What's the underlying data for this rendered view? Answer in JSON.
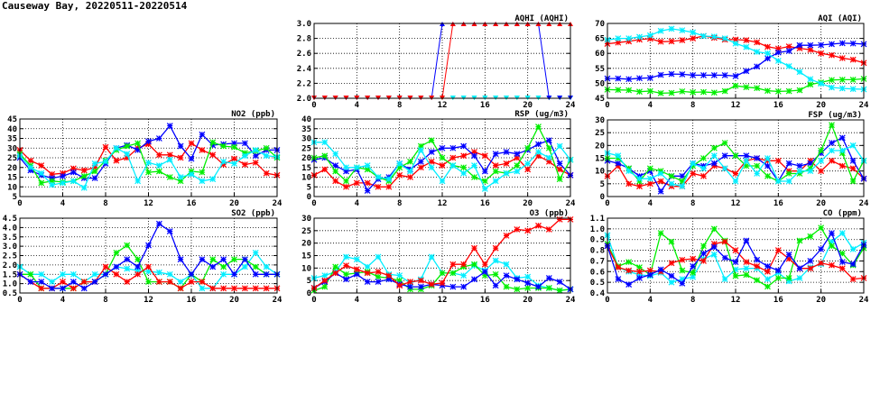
{
  "title": "Causeway Bay, 20220511-20220514",
  "colors": {
    "red": "#ff0000",
    "blue": "#0000ff",
    "green": "#00ee00",
    "cyan": "#00eeff"
  },
  "chart_data": [
    {
      "id": "aqhi",
      "type": "line",
      "title": "AQHI (AQHI)",
      "marker": "triangle",
      "ylim": [
        2.0,
        3.0
      ],
      "yticks": [
        "2.0",
        "2.2",
        "2.4",
        "2.6",
        "2.8",
        "3.0"
      ],
      "xticks": [
        "0",
        "4",
        "8",
        "12",
        "16",
        "20",
        "24"
      ],
      "xlim": [
        0,
        24
      ],
      "series": [
        {
          "color": "green",
          "values": [
            2,
            2,
            2,
            2,
            2,
            2,
            2,
            2,
            2,
            2,
            2,
            2,
            2,
            2,
            2,
            2,
            2,
            2,
            2,
            2,
            2,
            2,
            2,
            2,
            2
          ]
        },
        {
          "color": "cyan",
          "values": [
            2,
            2,
            2,
            2,
            2,
            2,
            2,
            2,
            2,
            2,
            2,
            2,
            2,
            2,
            2,
            2,
            2,
            2,
            2,
            2,
            2,
            2,
            2,
            2,
            2
          ]
        },
        {
          "color": "blue",
          "values": [
            2,
            2,
            2,
            2,
            2,
            2,
            2,
            2,
            2,
            2,
            2,
            2,
            3,
            3,
            3,
            3,
            3,
            3,
            3,
            3,
            3,
            3,
            2,
            2,
            2
          ]
        },
        {
          "color": "red",
          "values": [
            2,
            2,
            2,
            2,
            2,
            2,
            2,
            2,
            2,
            2,
            2,
            2,
            2,
            3,
            3,
            3,
            3,
            3,
            3,
            3,
            3,
            3,
            3,
            3,
            3
          ]
        }
      ]
    },
    {
      "id": "aqi",
      "type": "line",
      "title": "AQI (AQI)",
      "marker": "star",
      "ylim": [
        45,
        70
      ],
      "yticks": [
        "45",
        "50",
        "55",
        "60",
        "65",
        "70"
      ],
      "xticks": [
        "0",
        "4",
        "8",
        "12",
        "16",
        "20",
        "24"
      ],
      "xlim": [
        0,
        24
      ],
      "series": [
        {
          "color": "red",
          "values": [
            63.2,
            63.6,
            64,
            64.6,
            64.9,
            63.9,
            64,
            64.4,
            65,
            65.8,
            65.2,
            64.6,
            64.6,
            64.4,
            63.7,
            62.2,
            61.6,
            62.3,
            61.7,
            61.2,
            60,
            59.4,
            58.4,
            57.9,
            56.8
          ]
        },
        {
          "color": "blue",
          "values": [
            51.6,
            51.6,
            51.4,
            51.7,
            51.8,
            52.8,
            53.1,
            53,
            52.7,
            52.7,
            52.7,
            52.7,
            52.4,
            54.1,
            55.6,
            58.3,
            60.3,
            60.8,
            62.7,
            62.7,
            62.8,
            63.1,
            63.4,
            63.3,
            63.1
          ]
        },
        {
          "color": "green",
          "values": [
            47.9,
            47.8,
            47.7,
            47.2,
            47.4,
            46.7,
            46.8,
            47.3,
            47,
            47.1,
            46.9,
            47.4,
            49.2,
            48.7,
            48.4,
            47.5,
            47.3,
            47.4,
            47.7,
            49.6,
            50.3,
            51.1,
            51.2,
            51.2,
            51.5
          ]
        },
        {
          "color": "cyan",
          "values": [
            64.5,
            65,
            65,
            65.5,
            66,
            67.5,
            68.2,
            67.7,
            67,
            65.8,
            65.6,
            65,
            63.3,
            62.1,
            60.5,
            60,
            57.5,
            55.7,
            53.8,
            51.4,
            49.9,
            48.6,
            48.3,
            48.1,
            48
          ]
        }
      ]
    },
    {
      "id": "no2",
      "type": "line",
      "title": "NO2 (ppb)",
      "marker": "star",
      "ylim": [
        5,
        45
      ],
      "yticks": [
        "5",
        "10",
        "15",
        "20",
        "25",
        "30",
        "35",
        "40",
        "45"
      ],
      "xticks": [
        "0",
        "4",
        "8",
        "12",
        "16",
        "20",
        "24"
      ],
      "xlim": [
        0,
        24
      ],
      "series": [
        {
          "color": "red",
          "values": [
            29,
            23.5,
            21,
            16.5,
            17,
            19.5,
            18.5,
            20,
            30.5,
            23.5,
            25,
            30,
            32,
            26.5,
            26.5,
            25,
            32.5,
            29,
            26.5,
            21.5,
            24.5,
            21.5,
            22.5,
            17,
            16
          ]
        },
        {
          "color": "blue",
          "values": [
            25,
            18.5,
            16,
            14.5,
            15.5,
            17.5,
            14.5,
            14.5,
            22,
            30,
            31.5,
            29,
            33.5,
            35,
            41.5,
            31,
            24.5,
            37,
            31.5,
            32,
            32.5,
            32.5,
            26,
            29,
            29
          ]
        },
        {
          "color": "green",
          "values": [
            27,
            21,
            12,
            13,
            12.5,
            13,
            15.5,
            18,
            23.5,
            29,
            31,
            32.5,
            17.5,
            18,
            15,
            13,
            18,
            17.5,
            33,
            31,
            30.5,
            27.5,
            28.5,
            30,
            25
          ]
        },
        {
          "color": "cyan",
          "values": [
            26,
            20,
            17,
            11,
            12,
            13,
            9.5,
            22,
            23,
            30,
            27,
            13,
            22.5,
            21,
            24,
            15,
            16.5,
            13,
            14,
            23,
            22,
            26,
            29,
            26,
            25.5
          ]
        }
      ]
    },
    {
      "id": "rsp",
      "type": "line",
      "title": "RSP (ug/m3)",
      "marker": "star",
      "ylim": [
        0,
        40
      ],
      "yticks": [
        "0",
        "5",
        "10",
        "15",
        "20",
        "25",
        "30",
        "35",
        "40"
      ],
      "xticks": [
        "0",
        "4",
        "8",
        "12",
        "16",
        "20",
        "24"
      ],
      "xlim": [
        0,
        24
      ],
      "series": [
        {
          "color": "red",
          "values": [
            11,
            14,
            8,
            5,
            7,
            7,
            5,
            5,
            11,
            10,
            15,
            18,
            16,
            20,
            21,
            23,
            21,
            16,
            17,
            20,
            14,
            21,
            18,
            14,
            11
          ]
        },
        {
          "color": "blue",
          "values": [
            19,
            20,
            16,
            13,
            14,
            3,
            9,
            10,
            17,
            14,
            18,
            23,
            25,
            25,
            26,
            21,
            13,
            22,
            23,
            22,
            24,
            27,
            29,
            17,
            11
          ]
        },
        {
          "color": "green",
          "values": [
            20,
            21,
            13,
            8,
            15,
            14,
            10,
            8,
            15,
            18,
            26,
            29,
            20,
            16,
            15,
            10,
            8,
            13,
            12,
            16,
            25,
            36,
            25,
            9,
            19
          ]
        },
        {
          "color": "cyan",
          "values": [
            28,
            28,
            22,
            15,
            15,
            16,
            10,
            9,
            17,
            13,
            24,
            15,
            8,
            16,
            12,
            16,
            4,
            8,
            12,
            13,
            17,
            23,
            20,
            26,
            19
          ]
        }
      ]
    },
    {
      "id": "fsp",
      "type": "line",
      "title": "FSP (ug/m3)",
      "marker": "star",
      "ylim": [
        0,
        30
      ],
      "yticks": [
        "0",
        "5",
        "10",
        "15",
        "20",
        "25",
        "30"
      ],
      "xticks": [
        "0",
        "4",
        "8",
        "12",
        "16",
        "20",
        "24"
      ],
      "xlim": [
        0,
        24
      ],
      "series": [
        {
          "color": "red",
          "values": [
            8,
            12,
            5,
            4,
            5,
            6,
            4,
            4,
            9,
            8,
            12,
            11,
            9,
            14,
            15,
            14,
            14,
            10,
            10,
            14,
            10,
            14,
            12,
            11,
            7
          ]
        },
        {
          "color": "blue",
          "values": [
            14,
            13,
            11,
            8,
            10,
            2,
            8,
            8,
            13,
            12,
            13,
            16,
            16,
            16,
            15,
            12,
            6,
            13,
            12,
            13,
            17,
            21,
            23,
            14,
            7
          ]
        },
        {
          "color": "green",
          "values": [
            15,
            15,
            11,
            6,
            11,
            10,
            8,
            6,
            12,
            15,
            19,
            21,
            16,
            12,
            12,
            8,
            6,
            9,
            9,
            11,
            18,
            28,
            17,
            6,
            14
          ]
        },
        {
          "color": "cyan",
          "values": [
            17,
            16,
            10,
            7,
            7,
            9,
            5,
            4,
            13,
            11,
            16,
            11,
            6,
            14,
            9,
            15,
            6,
            6,
            10,
            10,
            14,
            18,
            18,
            20,
            14
          ]
        }
      ]
    },
    {
      "id": "so2",
      "type": "line",
      "title": "SO2 (ppb)",
      "marker": "star",
      "ylim": [
        0.5,
        4.5
      ],
      "yticks": [
        "0.5",
        "1.0",
        "1.5",
        "2.0",
        "2.5",
        "3.0",
        "3.5",
        "4.0",
        "4.5"
      ],
      "xticks": [
        "0",
        "4",
        "8",
        "12",
        "16",
        "20",
        "24"
      ],
      "xlim": [
        0,
        24
      ],
      "series": [
        {
          "color": "cyan",
          "values": [
            1.9,
            1.5,
            1.5,
            1.1,
            1.5,
            1.5,
            1.1,
            1.5,
            1.5,
            1.9,
            1.8,
            1.7,
            1.65,
            1.6,
            1.5,
            1.1,
            1.5,
            0.75,
            0.75,
            1.5,
            1.5,
            1.9,
            2.65,
            1.9,
            1.5
          ]
        },
        {
          "color": "green",
          "values": [
            1.5,
            1.5,
            0.75,
            0.75,
            0.75,
            0.75,
            1.1,
            1.1,
            1.5,
            2.65,
            3.05,
            2.3,
            1.1,
            1.1,
            1.1,
            0.75,
            1.5,
            1.1,
            2.3,
            1.9,
            2.3,
            2.3,
            1.9,
            1.5,
            1.5
          ]
        },
        {
          "color": "red",
          "values": [
            1.5,
            1.1,
            0.75,
            0.75,
            1.1,
            0.75,
            1.1,
            1.1,
            1.9,
            1.5,
            1.1,
            1.5,
            1.9,
            1.1,
            1.1,
            0.75,
            1.1,
            1.1,
            0.75,
            0.75,
            0.75,
            0.75,
            0.75,
            0.75,
            0.75
          ]
        },
        {
          "color": "blue",
          "values": [
            1.5,
            1.1,
            1.1,
            0.75,
            0.75,
            1.1,
            0.75,
            1.1,
            1.5,
            1.9,
            2.3,
            1.9,
            3.05,
            4.2,
            3.8,
            2.3,
            1.5,
            2.3,
            1.9,
            2.3,
            1.5,
            2.3,
            1.5,
            1.5,
            1.5
          ]
        }
      ]
    },
    {
      "id": "o3",
      "type": "line",
      "title": "O3 (ppb)",
      "marker": "star",
      "ylim": [
        0,
        30
      ],
      "yticks": [
        "0",
        "5",
        "10",
        "15",
        "20",
        "25",
        "30"
      ],
      "xticks": [
        "0",
        "4",
        "8",
        "12",
        "16",
        "20",
        "24"
      ],
      "xlim": [
        0,
        24
      ],
      "series": [
        {
          "color": "cyan",
          "values": [
            6,
            7,
            8.5,
            14.5,
            13.5,
            10.5,
            14.5,
            7.5,
            7,
            4,
            5.5,
            14.5,
            8,
            8,
            7,
            11,
            9,
            13,
            11.5,
            6,
            6.5,
            3,
            2,
            1,
            1.5
          ]
        },
        {
          "color": "green",
          "values": [
            1,
            2.5,
            10.5,
            7.5,
            8,
            8.5,
            6.5,
            6,
            5,
            1.5,
            1.5,
            3,
            8,
            8,
            10.5,
            11.5,
            7,
            7.5,
            2.5,
            1.5,
            2,
            2,
            2,
            1,
            1.5
          ]
        },
        {
          "color": "blue",
          "values": [
            2,
            4.5,
            8,
            5.5,
            7.5,
            4.5,
            4.5,
            5.5,
            3.5,
            2.5,
            2.5,
            3.5,
            3,
            2.5,
            2.5,
            5.5,
            8.5,
            3,
            7,
            5.5,
            4,
            2.5,
            6,
            4.5,
            1.5
          ]
        },
        {
          "color": "red",
          "values": [
            2,
            5,
            8,
            11,
            9.5,
            8,
            8.5,
            7,
            3,
            4.5,
            5,
            3.5,
            4,
            11.5,
            11.5,
            18,
            11.5,
            18,
            23,
            25.5,
            25,
            27,
            25.5,
            29.5,
            29.5
          ]
        }
      ]
    },
    {
      "id": "co",
      "type": "line",
      "title": "CO (ppm)",
      "marker": "star",
      "ylim": [
        0.4,
        1.1
      ],
      "yticks": [
        "0.4",
        "0.5",
        "0.6",
        "0.7",
        "0.8",
        "0.9",
        "1.0",
        "1.1"
      ],
      "xticks": [
        "0",
        "4",
        "8",
        "12",
        "16",
        "20",
        "24"
      ],
      "xlim": [
        0,
        24
      ],
      "series": [
        {
          "color": "cyan",
          "values": [
            0.94,
            0.64,
            0.6,
            0.57,
            0.56,
            0.59,
            0.5,
            0.53,
            0.55,
            0.72,
            0.76,
            0.53,
            0.62,
            0.63,
            0.63,
            0.53,
            0.59,
            0.51,
            0.54,
            0.64,
            0.67,
            0.88,
            0.96,
            0.81,
            0.87
          ]
        },
        {
          "color": "green",
          "values": [
            0.86,
            0.65,
            0.69,
            0.64,
            0.57,
            0.96,
            0.88,
            0.61,
            0.59,
            0.84,
            1.0,
            0.89,
            0.56,
            0.57,
            0.52,
            0.46,
            0.54,
            0.54,
            0.89,
            0.93,
            1.01,
            0.84,
            0.77,
            0.66,
            0.82
          ]
        },
        {
          "color": "red",
          "values": [
            0.84,
            0.64,
            0.61,
            0.6,
            0.61,
            0.6,
            0.68,
            0.71,
            0.72,
            0.7,
            0.86,
            0.88,
            0.8,
            0.69,
            0.65,
            0.6,
            0.8,
            0.72,
            0.63,
            0.63,
            0.68,
            0.66,
            0.63,
            0.53,
            0.54
          ]
        },
        {
          "color": "blue",
          "values": [
            0.84,
            0.53,
            0.48,
            0.54,
            0.57,
            0.62,
            0.56,
            0.49,
            0.65,
            0.77,
            0.83,
            0.73,
            0.69,
            0.89,
            0.71,
            0.65,
            0.61,
            0.76,
            0.63,
            0.7,
            0.81,
            0.96,
            0.69,
            0.67,
            0.85
          ]
        }
      ]
    }
  ]
}
